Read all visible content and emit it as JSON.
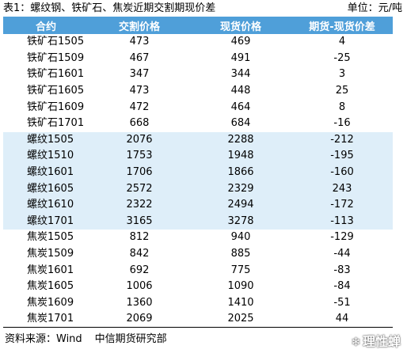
{
  "title": "表1：螺纹钢、铁矿石、焦炭近期交割期现价差",
  "unit": "单位：元/吨",
  "table": {
    "headers": [
      "合约",
      "交割价格",
      "现货价格",
      "期货-现货价差"
    ],
    "rows": [
      {
        "contract": "铁矿石1505",
        "delivery": "473",
        "spot": "469",
        "spread": "4",
        "alt": false
      },
      {
        "contract": "铁矿石1509",
        "delivery": "467",
        "spot": "491",
        "spread": "-25",
        "alt": false
      },
      {
        "contract": "铁矿石1601",
        "delivery": "347",
        "spot": "344",
        "spread": "3",
        "alt": false
      },
      {
        "contract": "铁矿石1605",
        "delivery": "473",
        "spot": "448",
        "spread": "25",
        "alt": false
      },
      {
        "contract": "铁矿石1609",
        "delivery": "472",
        "spot": "464",
        "spread": "8",
        "alt": false
      },
      {
        "contract": "铁矿石1701",
        "delivery": "668",
        "spot": "684",
        "spread": "-16",
        "alt": false
      },
      {
        "contract": "螺纹1505",
        "delivery": "2076",
        "spot": "2288",
        "spread": "-212",
        "alt": true
      },
      {
        "contract": "螺纹1510",
        "delivery": "1753",
        "spot": "1948",
        "spread": "-195",
        "alt": true
      },
      {
        "contract": "螺纹1601",
        "delivery": "1706",
        "spot": "1866",
        "spread": "-160",
        "alt": true
      },
      {
        "contract": "螺纹1605",
        "delivery": "2572",
        "spot": "2329",
        "spread": "243",
        "alt": true
      },
      {
        "contract": "螺纹1610",
        "delivery": "2322",
        "spot": "2494",
        "spread": "-172",
        "alt": true
      },
      {
        "contract": "螺纹1701",
        "delivery": "3165",
        "spot": "3278",
        "spread": "-113",
        "alt": true
      },
      {
        "contract": "焦炭1505",
        "delivery": "812",
        "spot": "940",
        "spread": "-129",
        "alt": false
      },
      {
        "contract": "焦炭1509",
        "delivery": "842",
        "spot": "885",
        "spread": "-44",
        "alt": false
      },
      {
        "contract": "焦炭1601",
        "delivery": "692",
        "spot": "775",
        "spread": "-83",
        "alt": false
      },
      {
        "contract": "焦炭1605",
        "delivery": "1006",
        "spot": "1090",
        "spread": "-84",
        "alt": false
      },
      {
        "contract": "焦炭1609",
        "delivery": "1360",
        "spot": "1410",
        "spread": "-51",
        "alt": false
      },
      {
        "contract": "焦炭1701",
        "delivery": "2069",
        "spot": "2025",
        "spread": "44",
        "alt": false
      }
    ]
  },
  "source": {
    "label": "资料来源：Wind",
    "org": "中信期货研究部"
  },
  "watermark": {
    "icon": "snowball-icon",
    "text": "理性蝉"
  },
  "colors": {
    "header_bg": "#4f9fd9",
    "alt_row_bg": "#deeef9"
  }
}
